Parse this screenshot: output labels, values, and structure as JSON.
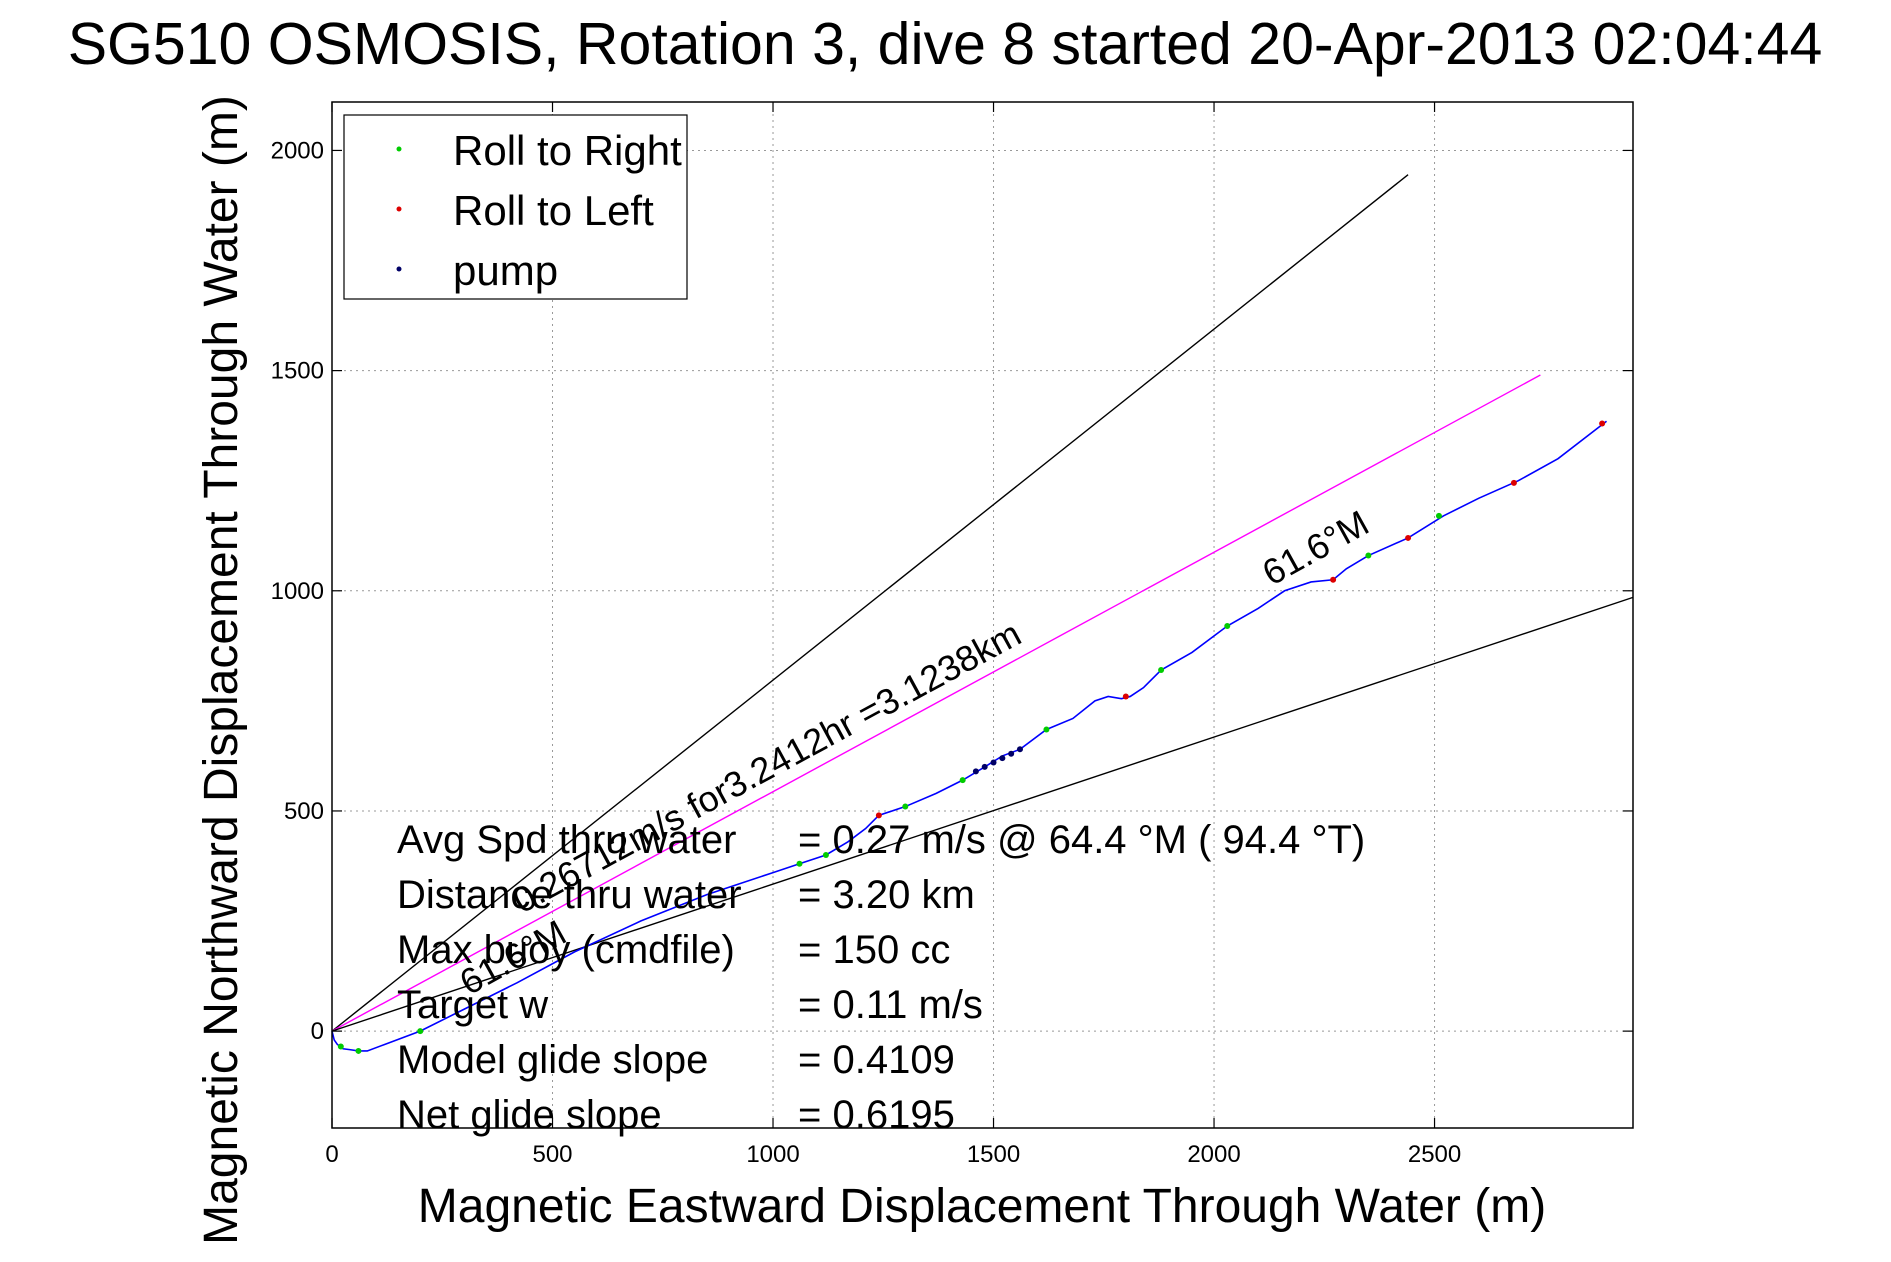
{
  "chart_data": {
    "type": "line",
    "title": "SG510 OSMOSIS, Rotation 3, dive 8 started 20-Apr-2013 02:04:44",
    "xlabel": "Magnetic Eastward Displacement Through Water (m)",
    "ylabel": "Magnetic Northward Displacement Through Water (m)",
    "xlim": [
      0,
      2950
    ],
    "ylim": [
      -220,
      2110
    ],
    "xticks": [
      "0",
      "500",
      "1000",
      "1500",
      "2000",
      "2500"
    ],
    "yticks": [
      "0",
      "500",
      "1000",
      "1500",
      "2000"
    ],
    "grid": true,
    "legend_position": "top-left",
    "legend": [
      {
        "label": "Roll to Right",
        "color": "#00cc00"
      },
      {
        "label": "Roll to Left",
        "color": "#dd0000"
      },
      {
        "label": "pump",
        "color": "#000066"
      }
    ],
    "track": {
      "color": "#0000ff",
      "x": [
        0,
        5,
        12,
        25,
        40,
        60,
        80,
        120,
        200,
        300,
        420,
        550,
        700,
        850,
        1000,
        1060,
        1120,
        1170,
        1210,
        1240,
        1300,
        1370,
        1430,
        1480,
        1520,
        1560,
        1620,
        1680,
        1730,
        1760,
        1790,
        1810,
        1840,
        1880,
        1950,
        2030,
        2100,
        2160,
        2220,
        2270,
        2300,
        2350,
        2440,
        2520,
        2600,
        2690,
        2780,
        2890
      ],
      "y": [
        0,
        -20,
        -30,
        -40,
        -42,
        -45,
        -45,
        -30,
        0,
        50,
        110,
        180,
        250,
        310,
        360,
        380,
        400,
        430,
        460,
        490,
        510,
        540,
        570,
        600,
        625,
        640,
        685,
        710,
        750,
        760,
        755,
        760,
        780,
        820,
        860,
        920,
        960,
        1000,
        1020,
        1025,
        1050,
        1080,
        1120,
        1170,
        1210,
        1250,
        1300,
        1385
      ]
    },
    "roll_right_points": {
      "x": [
        20,
        60,
        200,
        1060,
        1120,
        1300,
        1430,
        1620,
        1880,
        2030,
        2350,
        2510
      ],
      "y": [
        -35,
        -45,
        0,
        380,
        400,
        510,
        570,
        685,
        820,
        920,
        1080,
        1170
      ]
    },
    "roll_left_points": {
      "x": [
        1240,
        1800,
        2270,
        2440,
        2680,
        2880
      ],
      "y": [
        490,
        760,
        1025,
        1120,
        1245,
        1380
      ]
    },
    "pump_points": {
      "x": [
        1460,
        1480,
        1500,
        1520,
        1540,
        1560
      ],
      "y": [
        590,
        600,
        610,
        620,
        630,
        640
      ]
    },
    "reference_lines": [
      {
        "color": "#000000",
        "x": [
          0,
          2440
        ],
        "y": [
          0,
          1945
        ],
        "label": ""
      },
      {
        "color": "#ff00ff",
        "x": [
          0,
          2740
        ],
        "y": [
          0,
          1490
        ],
        "label": "0.26712m/s for3.2412hr =3.1238km"
      },
      {
        "color": "#000000",
        "x": [
          0,
          2950
        ],
        "y": [
          0,
          985
        ],
        "label": ""
      }
    ],
    "annotations": [
      {
        "text": "61.6°M",
        "x": 2130,
        "y": 1010,
        "angle": -29
      },
      {
        "text": "61.6°M",
        "x": 310,
        "y": 80,
        "angle": -29
      }
    ],
    "stats": [
      {
        "label": "Avg Spd thru water",
        "value": "=  0.27 m/s @  64.4 °M ( 94.4 °T)"
      },
      {
        "label": "Distance thru water",
        "value": "=  3.20 km"
      },
      {
        "label": "Max buoy (cmdfile)",
        "value": "= 150 cc"
      },
      {
        "label": "Target w",
        "value": "= 0.11 m/s"
      },
      {
        "label": "Model glide slope",
        "value": "= 0.4109"
      },
      {
        "label": "Net glide slope",
        "value": "= 0.6195"
      }
    ]
  }
}
